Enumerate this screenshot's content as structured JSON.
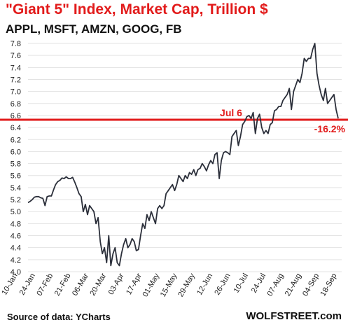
{
  "chart_data": {
    "type": "line",
    "title": "\"Giant 5\" Index, Market Cap, Trillion $",
    "subtitle": "APPL, MSFT, AMZN, GOOG, FB",
    "ylim": [
      4.0,
      7.8
    ],
    "yticks": [
      4.0,
      4.2,
      4.4,
      4.6,
      4.8,
      5.0,
      5.2,
      5.4,
      5.6,
      5.8,
      6.0,
      6.2,
      6.4,
      6.6,
      6.8,
      7.0,
      7.2,
      7.4,
      7.6,
      7.8
    ],
    "ytick_labels": [
      "4.0",
      "4.2",
      "4.4",
      "4.6",
      "4.8",
      "5.0",
      "5.2",
      "5.4",
      "5.6",
      "5.8",
      "6.0",
      "6.2",
      "6.4",
      "6.6",
      "6.8",
      "7.0",
      "7.2",
      "7.4",
      "7.6",
      "7.8"
    ],
    "xtick_labels": [
      "10-Jan",
      "24-Jan",
      "07-Feb",
      "21-Feb",
      "06-Mar",
      "20-Mar",
      "03-Apr",
      "17-Apr",
      "01-May",
      "15-May",
      "29-May",
      "12-Jun",
      "26-Jun",
      "10-Jul",
      "24-Jul",
      "07-Aug",
      "21-Aug",
      "04-Sep",
      "18-Sep"
    ],
    "series": [
      {
        "color": "#2b2f3a",
        "values": [
          5.15,
          5.17,
          5.2,
          5.24,
          5.25,
          5.25,
          5.23,
          5.22,
          5.1,
          5.25,
          5.26,
          5.26,
          5.36,
          5.45,
          5.5,
          5.52,
          5.56,
          5.55,
          5.58,
          5.55,
          5.55,
          5.57,
          5.49,
          5.4,
          5.3,
          5.25,
          5.0,
          5.12,
          4.95,
          5.1,
          5.05,
          5.0,
          4.8,
          4.9,
          4.5,
          4.3,
          4.4,
          4.15,
          4.6,
          4.1,
          4.3,
          4.4,
          4.15,
          4.1,
          4.3,
          4.45,
          4.55,
          4.4,
          4.45,
          4.55,
          4.5,
          4.35,
          4.37,
          4.6,
          4.8,
          4.72,
          4.95,
          4.85,
          5.0,
          4.9,
          4.8,
          5.05,
          5.1,
          5.05,
          5.1,
          5.3,
          5.35,
          5.4,
          5.45,
          5.35,
          5.45,
          5.6,
          5.55,
          5.5,
          5.6,
          5.55,
          5.65,
          5.62,
          5.7,
          5.6,
          5.7,
          5.72,
          5.8,
          5.75,
          5.68,
          5.78,
          5.85,
          5.8,
          5.95,
          5.98,
          5.55,
          5.85,
          5.98,
          6.0,
          5.98,
          5.95,
          6.25,
          6.3,
          6.35,
          6.1,
          6.25,
          6.45,
          6.5,
          6.58,
          6.6,
          6.55,
          6.65,
          6.3,
          6.55,
          6.62,
          6.4,
          6.3,
          6.35,
          6.3,
          6.45,
          6.48,
          6.68,
          6.7,
          6.75,
          6.75,
          6.85,
          6.9,
          6.95,
          7.05,
          6.7,
          7.0,
          7.1,
          7.2,
          7.15,
          7.3,
          7.55,
          7.5,
          7.55,
          7.55,
          7.7,
          7.8,
          7.3,
          7.1,
          6.95,
          6.85,
          7.05,
          6.8,
          6.85,
          6.9,
          6.95,
          6.7,
          6.55
        ]
      }
    ],
    "reference_line": {
      "value": 6.53,
      "label": "Jul 6",
      "color": "#e21b1b"
    },
    "annotation": {
      "text": "-16.2%",
      "color": "#e21b1b"
    },
    "grid": "horizontal",
    "legend": "none"
  },
  "footer": {
    "source": "Source of data: YCharts",
    "brand": "WOLFSTREET.com"
  }
}
